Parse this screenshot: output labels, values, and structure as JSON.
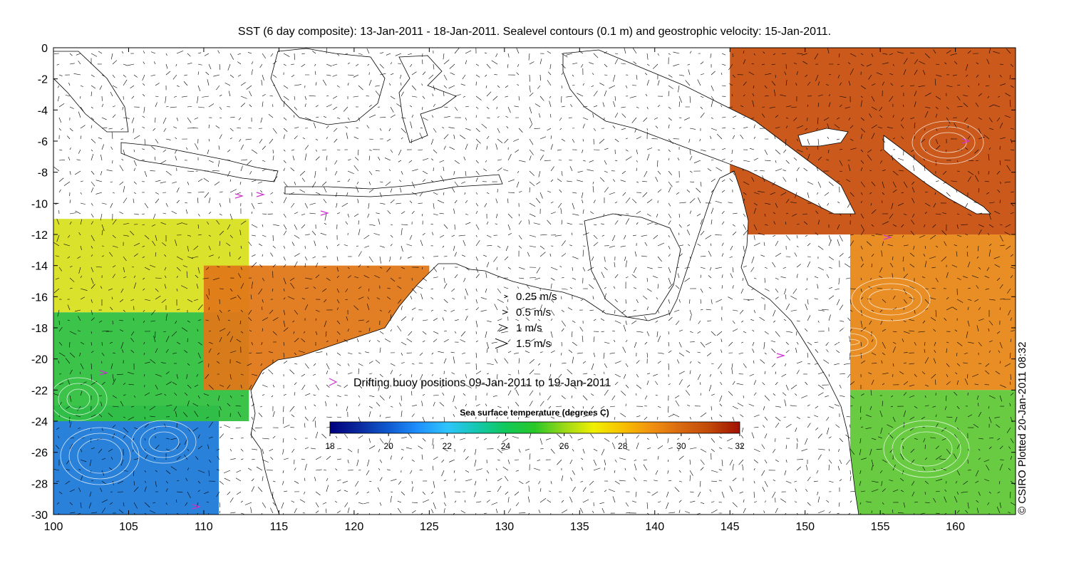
{
  "title": "SST (6 day composite): 13-Jan-2011 - 18-Jan-2011. Sealevel contours (0.1 m) and geostrophic velocity: 15-Jan-2011.",
  "credit": "© CSIRO Plotted 20-Jan-2011 08:32",
  "chart_data": {
    "type": "heatmap",
    "x_range": [
      100,
      164
    ],
    "y_range": [
      -30,
      0
    ],
    "x_ticks": [
      "100",
      "105",
      "110",
      "115",
      "120",
      "125",
      "130",
      "135",
      "140",
      "145",
      "150",
      "155",
      "160"
    ],
    "y_ticks": [
      "0",
      "-2",
      "-4",
      "-6",
      "-8",
      "-10",
      "-12",
      "-14",
      "-16",
      "-18",
      "-20",
      "-22",
      "-24",
      "-26",
      "-28",
      "-30"
    ],
    "velocity_legend": [
      {
        "label": "0.25 m/s",
        "speed": 0.25
      },
      {
        "label": "0.5 m/s",
        "speed": 0.5
      },
      {
        "label": "1 m/s",
        "speed": 1
      },
      {
        "label": "1.5 m/s",
        "speed": 1.5
      }
    ],
    "buoy_legend": {
      "label": "Drifting buoy positions 09-Jan-2011 to 19-Jan-2011",
      "color": "#cc33cc"
    },
    "colorbar": {
      "title": "Sea surface temperature (degrees C)",
      "min": 18,
      "max": 32,
      "ticks": [
        "18",
        "20",
        "22",
        "24",
        "26",
        "28",
        "30",
        "32"
      ],
      "stops": [
        "#00007f",
        "#0a2a9e",
        "#0f5ad0",
        "#1e90ff",
        "#2ec4ff",
        "#14c8b0",
        "#10c85a",
        "#28c828",
        "#9ad818",
        "#f0f000",
        "#f8c000",
        "#f09010",
        "#d86810",
        "#c04808",
        "#a01000"
      ]
    },
    "sst_regions": [
      {
        "name": "nw-cold-pool",
        "color": "#1e7ad8",
        "lon": [
          100,
          111
        ],
        "lat": [
          -30,
          -23
        ]
      },
      {
        "name": "w-green-band",
        "color": "#30c040",
        "lon": [
          100,
          113
        ],
        "lat": [
          -24,
          -17
        ]
      },
      {
        "name": "w-yellow-band",
        "color": "#d8e020",
        "lon": [
          100,
          113
        ],
        "lat": [
          -17,
          -11
        ]
      },
      {
        "name": "nw-shelf-warm",
        "color": "#e07818",
        "lon": [
          110,
          125
        ],
        "lat": [
          -22,
          -14
        ]
      },
      {
        "name": "coral-sea-warm",
        "color": "#c85010",
        "lon": [
          145,
          164
        ],
        "lat": [
          -12,
          0
        ]
      },
      {
        "name": "e-orange-band",
        "color": "#e88818",
        "lon": [
          153,
          164
        ],
        "lat": [
          -22,
          -12
        ]
      },
      {
        "name": "e-green-band",
        "color": "#60c838",
        "lon": [
          153,
          164
        ],
        "lat": [
          -30,
          -22
        ]
      }
    ]
  }
}
